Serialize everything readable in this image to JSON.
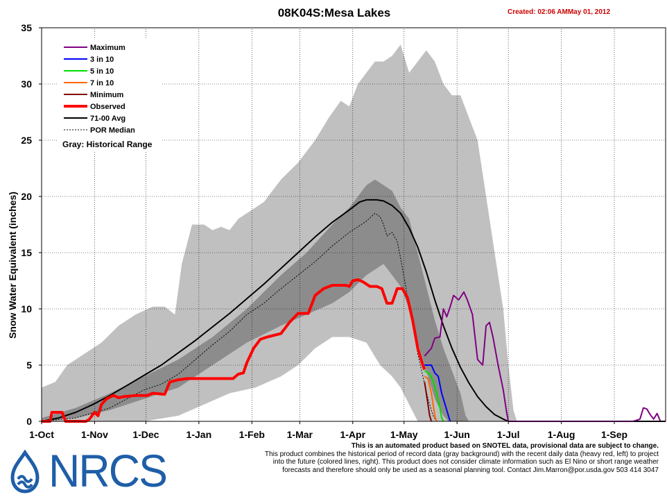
{
  "chart_data": {
    "type": "line",
    "title": "08K04S:Mesa Lakes",
    "created": "Created: 02:06 AMMay 01, 2012",
    "ylabel": "Snow Water Equivalent (inches)",
    "xlabel": "",
    "ylim": [
      0,
      35
    ],
    "yticks": [
      "0",
      "5",
      "10",
      "15",
      "20",
      "25",
      "30",
      "35"
    ],
    "xlim_days": [
      0,
      365
    ],
    "xticks": [
      {
        "label": "1-Oct",
        "day": 0
      },
      {
        "label": "1-Nov",
        "day": 31
      },
      {
        "label": "1-Dec",
        "day": 61
      },
      {
        "label": "1-Jan",
        "day": 92
      },
      {
        "label": "1-Feb",
        "day": 123
      },
      {
        "label": "1-Mar",
        "day": 151
      },
      {
        "label": "1-Apr",
        "day": 182
      },
      {
        "label": "1-May",
        "day": 212
      },
      {
        "label": "1-Jun",
        "day": 243
      },
      {
        "label": "1-Jul",
        "day": 273
      },
      {
        "label": "1-Aug",
        "day": 304
      },
      {
        "label": "1-Sep",
        "day": 335
      }
    ],
    "grid": true,
    "legend_position": "top-left",
    "legend": [
      {
        "name": "Maximum",
        "color": "#800080",
        "width": 2,
        "dash": ""
      },
      {
        "name": "3 in 10",
        "color": "#0000ff",
        "width": 2,
        "dash": ""
      },
      {
        "name": "5 in 10",
        "color": "#00dd00",
        "width": 2,
        "dash": ""
      },
      {
        "name": "7 in 10",
        "color": "#ff6600",
        "width": 2,
        "dash": ""
      },
      {
        "name": "Minimum",
        "color": "#800000",
        "width": 2,
        "dash": ""
      },
      {
        "name": "Observed",
        "color": "#ff0000",
        "width": 4,
        "dash": ""
      },
      {
        "name": "71-00 Avg",
        "color": "#000000",
        "width": 2,
        "dash": ""
      },
      {
        "name": "POR Median",
        "color": "#000000",
        "width": 1,
        "dash": "2,2"
      }
    ],
    "gray_note": "Gray: Historical Range",
    "historical_range_upper": [
      [
        0,
        3
      ],
      [
        8,
        3.5
      ],
      [
        15,
        5
      ],
      [
        25,
        6
      ],
      [
        35,
        7
      ],
      [
        45,
        8.5
      ],
      [
        55,
        9.5
      ],
      [
        65,
        10.2
      ],
      [
        72,
        10.2
      ],
      [
        78,
        9.5
      ],
      [
        82,
        14
      ],
      [
        88,
        17.5
      ],
      [
        95,
        17.5
      ],
      [
        100,
        17
      ],
      [
        105,
        17.3
      ],
      [
        110,
        17
      ],
      [
        115,
        18
      ],
      [
        120,
        18.5
      ],
      [
        130,
        19.5
      ],
      [
        140,
        21.5
      ],
      [
        150,
        23
      ],
      [
        160,
        25
      ],
      [
        168,
        27
      ],
      [
        175,
        28.5
      ],
      [
        180,
        28
      ],
      [
        185,
        30
      ],
      [
        190,
        31
      ],
      [
        195,
        32
      ],
      [
        200,
        32
      ],
      [
        205,
        32.5
      ],
      [
        210,
        33.5
      ],
      [
        215,
        31
      ],
      [
        220,
        32
      ],
      [
        225,
        33
      ],
      [
        230,
        32
      ],
      [
        235,
        30
      ],
      [
        240,
        29
      ],
      [
        245,
        29
      ],
      [
        250,
        27
      ],
      [
        255,
        25
      ],
      [
        260,
        20
      ],
      [
        265,
        15
      ],
      [
        270,
        10
      ],
      [
        273,
        5
      ],
      [
        276,
        1
      ],
      [
        278,
        0
      ]
    ],
    "historical_range_lower": [
      [
        0,
        0
      ],
      [
        60,
        0
      ],
      [
        80,
        0.5
      ],
      [
        95,
        1.5
      ],
      [
        110,
        2.5
      ],
      [
        125,
        3
      ],
      [
        140,
        4
      ],
      [
        150,
        5
      ],
      [
        160,
        6.5
      ],
      [
        170,
        7.5
      ],
      [
        180,
        7.5
      ],
      [
        190,
        7
      ],
      [
        198,
        5
      ],
      [
        205,
        4
      ],
      [
        210,
        3
      ],
      [
        215,
        1.5
      ],
      [
        220,
        0
      ],
      [
        230,
        0
      ]
    ],
    "inner_band_upper": [
      [
        0,
        0.3
      ],
      [
        20,
        1.2
      ],
      [
        40,
        2.5
      ],
      [
        60,
        4
      ],
      [
        80,
        5.5
      ],
      [
        100,
        7.5
      ],
      [
        120,
        10
      ],
      [
        140,
        13
      ],
      [
        155,
        15
      ],
      [
        170,
        17.5
      ],
      [
        180,
        19
      ],
      [
        190,
        21
      ],
      [
        195,
        21.5
      ],
      [
        200,
        21
      ],
      [
        205,
        20.5
      ],
      [
        210,
        19
      ],
      [
        215,
        18
      ],
      [
        220,
        15
      ],
      [
        225,
        12
      ],
      [
        230,
        9
      ],
      [
        235,
        6.5
      ],
      [
        240,
        4.5
      ],
      [
        245,
        2.5
      ],
      [
        248,
        0.5
      ],
      [
        250,
        0
      ]
    ],
    "inner_band_lower": [
      [
        0,
        0
      ],
      [
        20,
        0.3
      ],
      [
        40,
        1
      ],
      [
        60,
        2
      ],
      [
        80,
        3
      ],
      [
        100,
        5
      ],
      [
        120,
        7
      ],
      [
        140,
        8.5
      ],
      [
        155,
        9.5
      ],
      [
        170,
        10.5
      ],
      [
        180,
        11.5
      ],
      [
        190,
        13
      ],
      [
        200,
        14
      ],
      [
        205,
        13
      ],
      [
        210,
        12
      ],
      [
        215,
        10
      ],
      [
        220,
        7
      ],
      [
        225,
        4.5
      ],
      [
        230,
        2
      ],
      [
        235,
        0.5
      ],
      [
        238,
        0
      ]
    ],
    "series": [
      {
        "name": "71-00 Avg",
        "color": "#000000",
        "points": [
          [
            0,
            0
          ],
          [
            10,
            0.3
          ],
          [
            20,
            0.8
          ],
          [
            30,
            1.5
          ],
          [
            40,
            2.3
          ],
          [
            50,
            3.2
          ],
          [
            60,
            4.1
          ],
          [
            70,
            5.0
          ],
          [
            80,
            6.1
          ],
          [
            90,
            7.2
          ],
          [
            100,
            8.4
          ],
          [
            110,
            9.6
          ],
          [
            120,
            10.9
          ],
          [
            130,
            12.2
          ],
          [
            140,
            13.6
          ],
          [
            150,
            15.0
          ],
          [
            160,
            16.4
          ],
          [
            170,
            17.7
          ],
          [
            180,
            18.8
          ],
          [
            186,
            19.5
          ],
          [
            190,
            19.7
          ],
          [
            196,
            19.7
          ],
          [
            200,
            19.6
          ],
          [
            205,
            19.2
          ],
          [
            210,
            18.5
          ],
          [
            215,
            17.2
          ],
          [
            220,
            15.5
          ],
          [
            225,
            13.3
          ],
          [
            230,
            10.8
          ],
          [
            235,
            8.5
          ],
          [
            240,
            6.5
          ],
          [
            245,
            4.8
          ],
          [
            250,
            3.4
          ],
          [
            255,
            2.2
          ],
          [
            260,
            1.3
          ],
          [
            265,
            0.6
          ],
          [
            270,
            0.2
          ],
          [
            273,
            0
          ],
          [
            365,
            0
          ]
        ]
      },
      {
        "name": "POR Median",
        "color": "#000000",
        "points": [
          [
            0,
            0
          ],
          [
            20,
            0.3
          ],
          [
            40,
            1.2
          ],
          [
            60,
            2.8
          ],
          [
            70,
            3.3
          ],
          [
            80,
            4.2
          ],
          [
            90,
            5.5
          ],
          [
            100,
            6.8
          ],
          [
            110,
            8
          ],
          [
            120,
            9.5
          ],
          [
            130,
            10.5
          ],
          [
            140,
            11.8
          ],
          [
            150,
            13
          ],
          [
            160,
            14.2
          ],
          [
            170,
            15.6
          ],
          [
            180,
            16.8
          ],
          [
            190,
            17.8
          ],
          [
            195,
            18.5
          ],
          [
            198,
            18.2
          ],
          [
            200,
            17.5
          ],
          [
            202,
            16.5
          ],
          [
            205,
            16.8
          ],
          [
            208,
            16
          ],
          [
            210,
            14.5
          ],
          [
            213,
            12
          ],
          [
            215,
            10
          ],
          [
            218,
            8
          ],
          [
            220,
            6
          ],
          [
            223,
            4
          ],
          [
            226,
            2
          ],
          [
            229,
            0.5
          ],
          [
            231,
            0
          ]
        ]
      },
      {
        "name": "Observed",
        "color": "#ff0000",
        "points": [
          [
            0,
            0
          ],
          [
            5,
            0
          ],
          [
            6,
            0.8
          ],
          [
            12,
            0.8
          ],
          [
            14,
            0
          ],
          [
            26,
            0
          ],
          [
            28,
            0.2
          ],
          [
            31,
            0.8
          ],
          [
            33,
            0.5
          ],
          [
            35,
            1.5
          ],
          [
            38,
            2
          ],
          [
            42,
            2.3
          ],
          [
            45,
            2.1
          ],
          [
            48,
            2.2
          ],
          [
            55,
            2.3
          ],
          [
            62,
            2.3
          ],
          [
            65,
            2.5
          ],
          [
            72,
            2.4
          ],
          [
            75,
            3.5
          ],
          [
            80,
            3.7
          ],
          [
            85,
            3.8
          ],
          [
            112,
            3.8
          ],
          [
            115,
            4.2
          ],
          [
            118,
            4.3
          ],
          [
            120,
            5.2
          ],
          [
            124,
            6.5
          ],
          [
            128,
            7.3
          ],
          [
            132,
            7.5
          ],
          [
            140,
            7.8
          ],
          [
            145,
            8.8
          ],
          [
            150,
            9.6
          ],
          [
            156,
            9.6
          ],
          [
            160,
            11.2
          ],
          [
            165,
            11.8
          ],
          [
            170,
            12.1
          ],
          [
            178,
            12.1
          ],
          [
            180,
            12
          ],
          [
            182,
            12.5
          ],
          [
            185,
            12.6
          ],
          [
            188,
            12.4
          ],
          [
            192,
            12
          ],
          [
            196,
            12
          ],
          [
            199,
            11.8
          ],
          [
            202,
            10.5
          ],
          [
            205,
            10.5
          ],
          [
            208,
            11.8
          ],
          [
            211,
            11.8
          ],
          [
            214,
            11
          ],
          [
            217,
            9
          ],
          [
            220,
            6.5
          ],
          [
            223,
            5
          ],
          [
            224,
            4.6
          ]
        ]
      },
      {
        "name": "Maximum",
        "color": "#800080",
        "points": [
          [
            224,
            5.8
          ],
          [
            228,
            6.5
          ],
          [
            230,
            7.4
          ],
          [
            233,
            7.5
          ],
          [
            235,
            10
          ],
          [
            237,
            9.3
          ],
          [
            239,
            10.2
          ],
          [
            241,
            11.2
          ],
          [
            244,
            10.8
          ],
          [
            247,
            11.5
          ],
          [
            249,
            10.8
          ],
          [
            252,
            9.5
          ],
          [
            255,
            5.5
          ],
          [
            258,
            5
          ],
          [
            260,
            8.5
          ],
          [
            262,
            8.8
          ],
          [
            264,
            7.5
          ],
          [
            267,
            5
          ],
          [
            270,
            2.8
          ],
          [
            272,
            0.8
          ],
          [
            273,
            0
          ],
          [
            346,
            0
          ],
          [
            350,
            0.2
          ],
          [
            352,
            1.2
          ],
          [
            354,
            1.1
          ],
          [
            356,
            0.6
          ],
          [
            358,
            0.2
          ],
          [
            360,
            0.7
          ],
          [
            362,
            0
          ]
        ]
      },
      {
        "name": "3 in 10",
        "color": "#0000ff",
        "points": [
          [
            224,
            5
          ],
          [
            228,
            5
          ],
          [
            230,
            4.3
          ],
          [
            232,
            4
          ],
          [
            234,
            2.5
          ],
          [
            236,
            1.5
          ],
          [
            238,
            0.5
          ],
          [
            239,
            0
          ]
        ]
      },
      {
        "name": "5 in 10",
        "color": "#00dd00",
        "points": [
          [
            224,
            4.5
          ],
          [
            227,
            4.2
          ],
          [
            229,
            3.6
          ],
          [
            231,
            2.5
          ],
          [
            233,
            1.2
          ],
          [
            234,
            0.3
          ],
          [
            235,
            0
          ]
        ]
      },
      {
        "name": "7 in 10",
        "color": "#ff6600",
        "points": [
          [
            224,
            4
          ],
          [
            226,
            3.8
          ],
          [
            228,
            2.5
          ],
          [
            229,
            1.5
          ],
          [
            230,
            0.5
          ],
          [
            231,
            0
          ]
        ]
      },
      {
        "name": "Minimum",
        "color": "#800000",
        "points": [
          [
            224,
            3.5
          ],
          [
            225,
            2.5
          ],
          [
            226,
            1.5
          ],
          [
            227,
            0.5
          ],
          [
            228,
            0
          ]
        ]
      }
    ]
  },
  "disclaimer": {
    "line1": "This is an automated product based on SNOTEL data, provisional data are subject to change.",
    "line2": "This product combines the historical period of record data (gray background) with the recent daily data (heavy red, left) to project",
    "line3": "into the future (colored lines, right). This product does not consider climate information such as El Nino or short range weather",
    "line4": "forecasts and therefore should only be used as a seasonal planning tool. Contact Jim.Marron@por.usda.gov 503 414 3047"
  },
  "logo": {
    "text": "NRCS",
    "color": "#1f5ea8"
  }
}
